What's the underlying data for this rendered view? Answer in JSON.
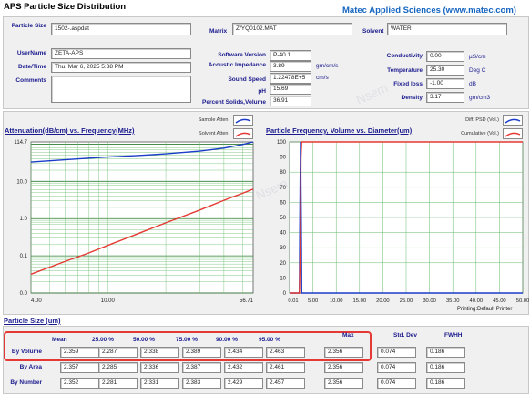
{
  "header": {
    "title": "APS Particle Size Distribution",
    "brand": "Matec Applied Sciences (www.matec.com)"
  },
  "info": {
    "particle_size_label": "Particle Size",
    "particle_size_value": "1502-.aspdat",
    "matrix_label": "Matrix",
    "matrix_value": "Z/YQ0102.MAT",
    "solvent_label": "Solvent",
    "solvent_value": "WATER",
    "username_label": "UserName",
    "username_value": "ZETA-APS",
    "datetime_label": "Date/Time",
    "datetime_value": "Thu, Mar 6, 2025 5:38 PM",
    "comments_label": "Comments",
    "comments_value": "",
    "software_version_label": "Software Version",
    "software_version_value": "P-40.1",
    "acoustic_impedance_label": "Acoustic Impedance",
    "acoustic_impedance_value": "3.89",
    "acoustic_impedance_unit": "gm/cm/s",
    "sound_speed_label": "Sound Speed",
    "sound_speed_value": "1.22478E+5",
    "sound_speed_unit": "cm/s",
    "ph_label": "pH",
    "ph_value": "15.69",
    "percent_solids_label": "Percent Solids,Volume",
    "percent_solids_value": "36.91",
    "conductivity_label": "Conductivity",
    "conductivity_value": "0.00",
    "conductivity_unit": "µS/cm",
    "temperature_label": "Temperature",
    "temperature_value": "25.30",
    "temperature_unit": "Deg C",
    "fixed_loss_label": "Fixed loss",
    "fixed_loss_value": "-1.00",
    "fixed_loss_unit": "dB",
    "density_label": "Density",
    "density_value": "3.17",
    "density_unit": "gm/cm3"
  },
  "attenuation_chart": {
    "title": "Attenuation(dB/cm) vs. Frequency(MHz)",
    "legend_sample": "Sample Atten.",
    "legend_solvent": "Solvent Atten.",
    "sample_color": "#1a3cc8",
    "solvent_color": "#e53935",
    "y_ticks": [
      "114.7",
      "10.0",
      "1.0",
      "0.1",
      "0.0"
    ],
    "x_ticks": [
      "4.00",
      "10.00",
      "56.71"
    ]
  },
  "frequency_chart": {
    "title": "Particle Frequency, Volume vs. Diameter(um)",
    "legend_diff": "Diff. PSD (Vol.)",
    "legend_cum": "Cumulative (Vol.)",
    "diff_color": "#1a3cc8",
    "cum_color": "#e53935",
    "y_ticks": [
      "100",
      "90",
      "80",
      "70",
      "60",
      "50",
      "40",
      "30",
      "20",
      "10",
      "0"
    ],
    "x_ticks": [
      "0.01",
      "5.00",
      "10.00",
      "15.00",
      "20.00",
      "25.00",
      "30.00",
      "35.00",
      "40.00",
      "45.00",
      "50.00"
    ],
    "footer": "Printing:Default Printer"
  },
  "particle_table": {
    "title": "Particle Size (um)",
    "headers": [
      "Mean",
      "25.00 %",
      "50.00 %",
      "75.00 %",
      "90.00 %",
      "95.00 %",
      "Max",
      "Std. Dev",
      "FWHH"
    ],
    "rows": [
      {
        "label": "By Volume",
        "values": [
          "2.359",
          "2.287",
          "2.338",
          "2.389",
          "2.434",
          "2.463",
          "2.356",
          "0.074",
          "0.186"
        ]
      },
      {
        "label": "By Area",
        "values": [
          "2.357",
          "2.285",
          "2.336",
          "2.387",
          "2.432",
          "2.461",
          "2.356",
          "0.074",
          "0.186"
        ]
      },
      {
        "label": "By Number",
        "values": [
          "2.352",
          "2.281",
          "2.331",
          "2.383",
          "2.429",
          "2.457",
          "2.356",
          "0.074",
          "0.186"
        ]
      }
    ]
  },
  "chart_data": [
    {
      "type": "line",
      "title": "Attenuation(dB/cm) vs. Frequency(MHz)",
      "xlim": [
        4.0,
        56.71
      ],
      "ylim": [
        0.0,
        114.7
      ],
      "y_scale": "log",
      "x_scale": "log",
      "series": [
        {
          "name": "Sample Atten.",
          "x": [
            4,
            6,
            8,
            10,
            15,
            20,
            30,
            40,
            50,
            56.71
          ],
          "values": [
            33,
            38,
            42,
            45,
            50,
            55,
            65,
            78,
            98,
            114.7
          ]
        },
        {
          "name": "Solvent Atten.",
          "x": [
            4,
            6,
            8,
            10,
            15,
            20,
            30,
            40,
            50,
            56.71
          ],
          "values": [
            0.032,
            0.07,
            0.12,
            0.19,
            0.43,
            0.77,
            1.7,
            3.1,
            4.8,
            6.2
          ]
        }
      ],
      "grid": true
    },
    {
      "type": "line",
      "title": "Particle Frequency, Volume vs. Diameter(um)",
      "xlim": [
        0.01,
        50.0
      ],
      "ylim": [
        0,
        100
      ],
      "series": [
        {
          "name": "Diff. PSD (Vol.)",
          "x": [
            0.01,
            2.1,
            2.2,
            2.35,
            2.5,
            2.6,
            50
          ],
          "values": [
            0,
            0,
            50,
            100,
            50,
            0,
            0
          ]
        },
        {
          "name": "Cumulative (Vol.)",
          "x": [
            0.01,
            2.1,
            2.3,
            2.45,
            2.6,
            50
          ],
          "values": [
            0,
            0,
            30,
            90,
            100,
            100
          ]
        }
      ],
      "grid": true
    }
  ]
}
